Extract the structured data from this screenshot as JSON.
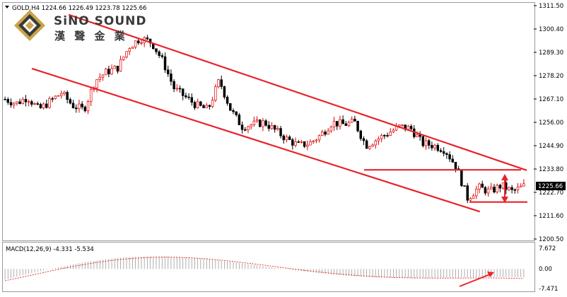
{
  "header": {
    "symbol_info": "GOLD,H4  1224.66 1226.49 1223.78 1225.66"
  },
  "logo": {
    "brand": "SiNO SOUND",
    "chinese": "漢 聲 金 業"
  },
  "price_axis": {
    "labels": [
      "1311.50",
      "1300.40",
      "1289.30",
      "1278.20",
      "1267.10",
      "1256.00",
      "1244.90",
      "1233.80",
      "1222.70",
      "1211.60",
      "1200.50"
    ],
    "current_price": "1225.66"
  },
  "macd": {
    "label": "MACD(12,26,9) -4.331 -5.534",
    "axis_labels": [
      "7.672",
      "0.00",
      "-7.471"
    ]
  },
  "colors": {
    "bull": "#e00000",
    "bear": "#000000",
    "trendline": "#e8232a",
    "grid": "#c8c8c8",
    "price_tag_bg": "#000000"
  },
  "chart_data": {
    "type": "candlestick",
    "symbol": "GOLD",
    "timeframe": "H4",
    "ohlc_last": {
      "open": 1224.66,
      "high": 1226.49,
      "low": 1223.78,
      "close": 1225.66
    },
    "ylim": [
      1200.5,
      1311.5
    ],
    "price_path": [
      1267,
      1265,
      1268,
      1262,
      1266,
      1270,
      1264,
      1262,
      1276,
      1280,
      1282,
      1292,
      1296,
      1294,
      1285,
      1272,
      1268,
      1264,
      1262,
      1276,
      1262,
      1254,
      1255,
      1256,
      1252,
      1248,
      1245,
      1246,
      1250,
      1256,
      1255,
      1256,
      1245,
      1248,
      1251,
      1254,
      1253,
      1246,
      1245,
      1243,
      1235,
      1220,
      1225,
      1223,
      1226,
      1223,
      1225.66
    ],
    "trendlines": [
      {
        "name": "upper channel",
        "from": [
          0.28,
          1307.2
        ],
        "to": [
          1.0,
          1233.2
        ]
      },
      {
        "name": "lower channel",
        "from": [
          0.0,
          1281.6
        ],
        "to": [
          0.92,
          1213.5
        ]
      },
      {
        "name": "resistance",
        "price": 1233.4
      },
      {
        "name": "support",
        "price": 1218.1
      }
    ],
    "macd": {
      "params": [
        12,
        26,
        9
      ],
      "main": -4.331,
      "signal": -5.534,
      "ylim": [
        -7.471,
        7.672
      ]
    }
  }
}
